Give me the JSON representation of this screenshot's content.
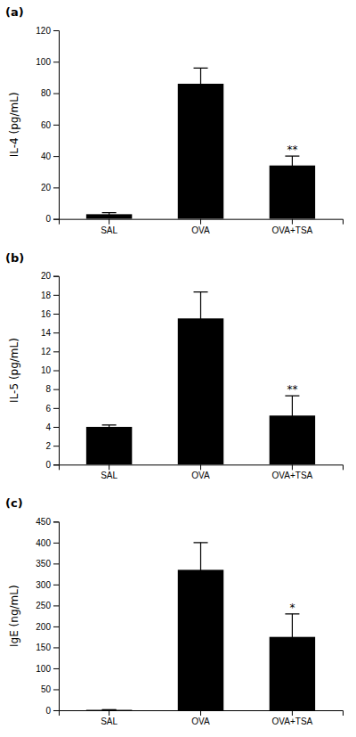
{
  "chart_data": [
    {
      "type": "bar",
      "title": "(a)",
      "ylabel": "IL-4 (pg/mL)",
      "categories": [
        "SAL",
        "OVA",
        "OVA+TSA"
      ],
      "values": [
        3.0,
        86.0,
        34.0
      ],
      "errors": [
        1.0,
        10.0,
        6.0
      ],
      "annotations": [
        null,
        null,
        "**"
      ],
      "color": "#000000",
      "ylim": [
        0,
        120
      ],
      "yticks": [
        0,
        20,
        40,
        60,
        80,
        100,
        120
      ]
    },
    {
      "type": "bar",
      "title": "(b)",
      "ylabel": "IL-5 (pg/mL)",
      "categories": [
        "SAL",
        "OVA",
        "OVA+TSA"
      ],
      "values": [
        4.0,
        15.5,
        5.2
      ],
      "errors": [
        0.2,
        2.8,
        2.1
      ],
      "annotations": [
        null,
        null,
        "**"
      ],
      "color": "#000000",
      "ylim": [
        0,
        20
      ],
      "yticks": [
        0,
        2,
        4,
        6,
        8,
        10,
        12,
        14,
        16,
        18,
        20
      ]
    },
    {
      "type": "bar",
      "title": "(c)",
      "ylabel": "IgE (ng/mL)",
      "categories": [
        "SAL",
        "OVA",
        "OVA+TSA"
      ],
      "values": [
        1.0,
        335.0,
        175.0
      ],
      "errors": [
        0.5,
        65.0,
        55.0
      ],
      "annotations": [
        null,
        null,
        "*"
      ],
      "color": "#000000",
      "ylim": [
        0,
        450
      ],
      "yticks": [
        0,
        50,
        100,
        150,
        200,
        250,
        300,
        350,
        400,
        450
      ]
    }
  ]
}
